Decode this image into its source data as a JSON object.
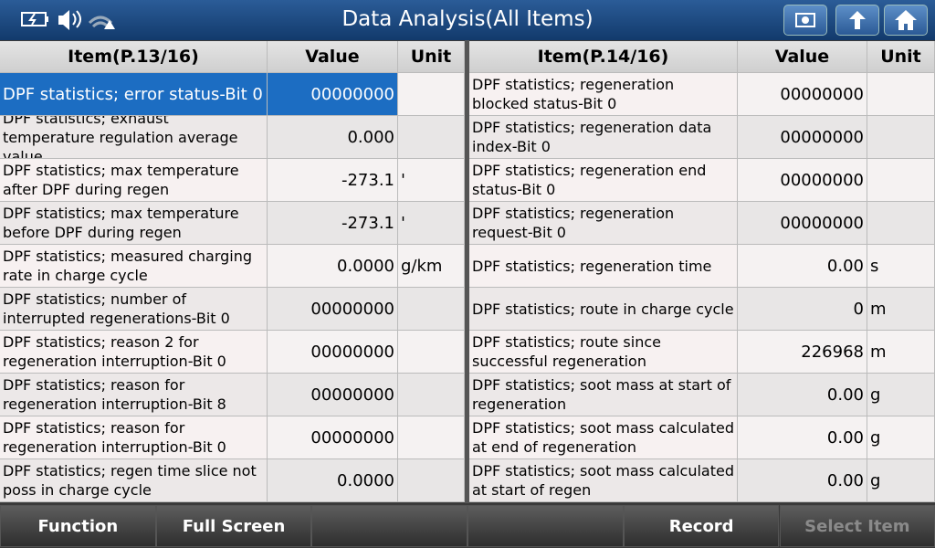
{
  "header": {
    "title": "Data Analysis(All Items)"
  },
  "tables": [
    {
      "columns": [
        "Item(P.13/16)",
        "Value",
        "Unit"
      ],
      "rows": [
        {
          "item": "DPF statistics; error status-Bit 0",
          "value": "00000000"
        },
        {
          "item": "DPF statistics; exhaust temperature regulation average value",
          "value": "0.000"
        },
        {
          "item": "DPF statistics; max temperature after DPF during regen",
          "value": "-273.1",
          "unit": "'"
        },
        {
          "item": "DPF statistics; max temperature before DPF during regen",
          "value": "-273.1",
          "unit": "'"
        },
        {
          "item": "DPF statistics; measured charging rate in charge cycle",
          "value": "0.0000",
          "unit": "g/km"
        },
        {
          "item": "DPF statistics; number of interrupted regenerations-Bit 0",
          "value": "00000000"
        },
        {
          "item": "DPF statistics; reason 2 for regeneration interruption-Bit 0",
          "value": "00000000"
        },
        {
          "item": "DPF statistics; reason for regeneration interruption-Bit 8",
          "value": "00000000"
        },
        {
          "item": "DPF statistics; reason for regeneration interruption-Bit 0",
          "value": "00000000"
        },
        {
          "item": "DPF statistics; regen time slice not poss in charge cycle",
          "value": "0.0000"
        }
      ]
    },
    {
      "columns": [
        "Item(P.14/16)",
        "Value",
        "Unit"
      ],
      "rows": [
        {
          "item": "DPF statistics; regeneration blocked status-Bit 0",
          "value": "00000000"
        },
        {
          "item": "DPF statistics; regeneration data index-Bit 0",
          "value": "00000000"
        },
        {
          "item": "DPF statistics; regeneration end status-Bit 0",
          "value": "00000000"
        },
        {
          "item": "DPF statistics; regeneration request-Bit 0",
          "value": "00000000"
        },
        {
          "item": "DPF statistics; regeneration time",
          "value": "0.00",
          "unit": "s"
        },
        {
          "item": "DPF statistics; route in charge cycle",
          "value": "0",
          "unit": "m"
        },
        {
          "item": "DPF statistics; route since successful regeneration",
          "value": "226968",
          "unit": "m"
        },
        {
          "item": "DPF statistics; soot mass at start of regeneration",
          "value": "0.00",
          "unit": "g"
        },
        {
          "item": "DPF statistics; soot mass calculated at end of regeneration",
          "value": "0.00",
          "unit": "g"
        },
        {
          "item": "DPF statistics; soot mass calculated at start of regen",
          "value": "0.00",
          "unit": "g"
        }
      ]
    }
  ],
  "buttons": [
    "Function",
    "Full Screen",
    null,
    null,
    "Record",
    "Select Item"
  ]
}
